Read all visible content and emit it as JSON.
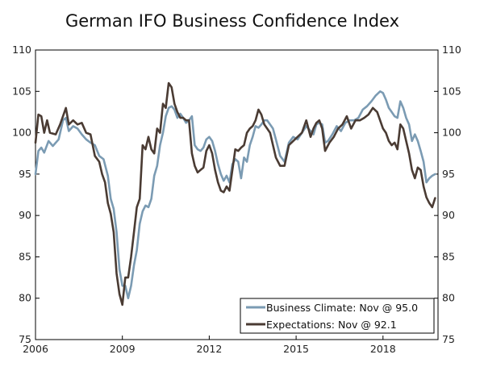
{
  "chart_data": {
    "type": "line",
    "title": "German IFO Business Confidence Index",
    "xlabel": "",
    "ylabel": "",
    "xlim": [
      2006.0,
      2019.9
    ],
    "ylim": [
      75,
      110
    ],
    "y_ticks": [
      75,
      80,
      85,
      90,
      95,
      100,
      105,
      110
    ],
    "y_tick_labels": [
      "75",
      "80",
      "85",
      "90",
      "95",
      "100",
      "105",
      "110"
    ],
    "x_ticks": [
      2006,
      2009,
      2012,
      2015,
      2018
    ],
    "x_tick_labels": [
      "2006",
      "2009",
      "2012",
      "2015",
      "2018"
    ],
    "grid": false,
    "legend_position": "bottom-right",
    "series": [
      {
        "name": "Business Climate",
        "legend_label": "Business Climate: Nov @ 95.0",
        "color": "#7b9bb3",
        "points": [
          [
            2006.0,
            95.0
          ],
          [
            2006.1,
            97.8
          ],
          [
            2006.2,
            98.2
          ],
          [
            2006.3,
            97.6
          ],
          [
            2006.45,
            99.0
          ],
          [
            2006.6,
            98.4
          ],
          [
            2006.8,
            99.2
          ],
          [
            2006.95,
            101.5
          ],
          [
            2007.05,
            101.8
          ],
          [
            2007.15,
            100.2
          ],
          [
            2007.3,
            100.8
          ],
          [
            2007.45,
            100.5
          ],
          [
            2007.6,
            99.8
          ],
          [
            2007.75,
            99.2
          ],
          [
            2007.9,
            98.8
          ],
          [
            2008.05,
            98.5
          ],
          [
            2008.2,
            97.2
          ],
          [
            2008.35,
            96.8
          ],
          [
            2008.5,
            94.8
          ],
          [
            2008.6,
            92.0
          ],
          [
            2008.7,
            90.8
          ],
          [
            2008.8,
            88.0
          ],
          [
            2008.9,
            83.5
          ],
          [
            2009.0,
            81.5
          ],
          [
            2009.1,
            81.5
          ],
          [
            2009.2,
            80.0
          ],
          [
            2009.3,
            81.5
          ],
          [
            2009.4,
            84.0
          ],
          [
            2009.5,
            85.8
          ],
          [
            2009.6,
            89.0
          ],
          [
            2009.7,
            90.5
          ],
          [
            2009.8,
            91.2
          ],
          [
            2009.9,
            91.0
          ],
          [
            2010.0,
            92.0
          ],
          [
            2010.1,
            94.8
          ],
          [
            2010.2,
            96.0
          ],
          [
            2010.3,
            98.5
          ],
          [
            2010.4,
            100.0
          ],
          [
            2010.5,
            102.0
          ],
          [
            2010.6,
            103.0
          ],
          [
            2010.7,
            103.2
          ],
          [
            2010.8,
            102.8
          ],
          [
            2010.9,
            101.8
          ],
          [
            2011.0,
            102.3
          ],
          [
            2011.1,
            101.8
          ],
          [
            2011.2,
            101.2
          ],
          [
            2011.3,
            101.5
          ],
          [
            2011.4,
            102.0
          ],
          [
            2011.5,
            98.5
          ],
          [
            2011.6,
            98.0
          ],
          [
            2011.7,
            97.8
          ],
          [
            2011.8,
            98.2
          ],
          [
            2011.9,
            99.2
          ],
          [
            2012.0,
            99.5
          ],
          [
            2012.1,
            99.0
          ],
          [
            2012.2,
            97.8
          ],
          [
            2012.3,
            96.2
          ],
          [
            2012.4,
            95.0
          ],
          [
            2012.5,
            94.2
          ],
          [
            2012.6,
            94.8
          ],
          [
            2012.7,
            94.0
          ],
          [
            2012.8,
            96.2
          ],
          [
            2012.9,
            96.8
          ],
          [
            2013.0,
            96.5
          ],
          [
            2013.1,
            94.5
          ],
          [
            2013.2,
            97.0
          ],
          [
            2013.3,
            96.5
          ],
          [
            2013.4,
            98.5
          ],
          [
            2013.5,
            99.5
          ],
          [
            2013.6,
            100.8
          ],
          [
            2013.7,
            100.6
          ],
          [
            2013.8,
            101.0
          ],
          [
            2013.9,
            101.5
          ],
          [
            2014.0,
            101.5
          ],
          [
            2014.1,
            101.0
          ],
          [
            2014.2,
            100.5
          ],
          [
            2014.3,
            99.2
          ],
          [
            2014.45,
            97.2
          ],
          [
            2014.6,
            96.5
          ],
          [
            2014.75,
            98.8
          ],
          [
            2014.9,
            99.5
          ],
          [
            2015.05,
            99.2
          ],
          [
            2015.2,
            100.0
          ],
          [
            2015.35,
            100.8
          ],
          [
            2015.5,
            100.2
          ],
          [
            2015.6,
            99.8
          ],
          [
            2015.7,
            101.0
          ],
          [
            2015.8,
            101.2
          ],
          [
            2015.9,
            101.0
          ],
          [
            2016.0,
            98.8
          ],
          [
            2016.1,
            99.0
          ],
          [
            2016.25,
            99.8
          ],
          [
            2016.4,
            100.8
          ],
          [
            2016.55,
            100.2
          ],
          [
            2016.7,
            101.2
          ],
          [
            2016.85,
            101.5
          ],
          [
            2017.0,
            101.5
          ],
          [
            2017.15,
            101.8
          ],
          [
            2017.3,
            102.8
          ],
          [
            2017.45,
            103.2
          ],
          [
            2017.6,
            103.8
          ],
          [
            2017.75,
            104.5
          ],
          [
            2017.9,
            105.0
          ],
          [
            2018.0,
            104.8
          ],
          [
            2018.1,
            104.0
          ],
          [
            2018.2,
            103.0
          ],
          [
            2018.3,
            102.5
          ],
          [
            2018.4,
            102.0
          ],
          [
            2018.5,
            101.8
          ],
          [
            2018.6,
            103.8
          ],
          [
            2018.7,
            103.0
          ],
          [
            2018.8,
            101.8
          ],
          [
            2018.9,
            101.0
          ],
          [
            2019.0,
            99.0
          ],
          [
            2019.1,
            99.8
          ],
          [
            2019.2,
            99.0
          ],
          [
            2019.3,
            97.8
          ],
          [
            2019.4,
            96.5
          ],
          [
            2019.5,
            94.0
          ],
          [
            2019.6,
            94.5
          ],
          [
            2019.7,
            94.8
          ],
          [
            2019.8,
            95.0
          ]
        ]
      },
      {
        "name": "Expectations",
        "legend_label": "Expectations: Nov @ 92.1",
        "color": "#4a3b33",
        "points": [
          [
            2006.0,
            98.8
          ],
          [
            2006.1,
            102.2
          ],
          [
            2006.2,
            102.0
          ],
          [
            2006.3,
            100.0
          ],
          [
            2006.4,
            101.5
          ],
          [
            2006.5,
            100.0
          ],
          [
            2006.7,
            99.8
          ],
          [
            2006.85,
            101.0
          ],
          [
            2006.95,
            102.0
          ],
          [
            2007.05,
            103.0
          ],
          [
            2007.15,
            101.0
          ],
          [
            2007.3,
            101.5
          ],
          [
            2007.45,
            101.0
          ],
          [
            2007.6,
            101.2
          ],
          [
            2007.75,
            100.0
          ],
          [
            2007.9,
            99.8
          ],
          [
            2008.05,
            97.2
          ],
          [
            2008.2,
            96.5
          ],
          [
            2008.3,
            95.0
          ],
          [
            2008.4,
            94.0
          ],
          [
            2008.5,
            91.5
          ],
          [
            2008.6,
            90.2
          ],
          [
            2008.7,
            88.0
          ],
          [
            2008.8,
            83.0
          ],
          [
            2008.9,
            80.5
          ],
          [
            2009.0,
            79.2
          ],
          [
            2009.1,
            82.5
          ],
          [
            2009.2,
            82.5
          ],
          [
            2009.3,
            85.0
          ],
          [
            2009.4,
            88.0
          ],
          [
            2009.5,
            91.0
          ],
          [
            2009.6,
            92.0
          ],
          [
            2009.7,
            98.5
          ],
          [
            2009.8,
            98.0
          ],
          [
            2009.9,
            99.5
          ],
          [
            2010.0,
            98.0
          ],
          [
            2010.1,
            97.5
          ],
          [
            2010.2,
            100.5
          ],
          [
            2010.3,
            100.0
          ],
          [
            2010.4,
            103.5
          ],
          [
            2010.5,
            103.0
          ],
          [
            2010.6,
            106.0
          ],
          [
            2010.7,
            105.5
          ],
          [
            2010.8,
            103.5
          ],
          [
            2010.9,
            102.5
          ],
          [
            2011.0,
            101.8
          ],
          [
            2011.1,
            101.8
          ],
          [
            2011.2,
            101.5
          ],
          [
            2011.3,
            101.5
          ],
          [
            2011.4,
            97.5
          ],
          [
            2011.5,
            96.0
          ],
          [
            2011.6,
            95.2
          ],
          [
            2011.7,
            95.5
          ],
          [
            2011.8,
            95.8
          ],
          [
            2011.9,
            97.8
          ],
          [
            2012.0,
            98.5
          ],
          [
            2012.1,
            97.5
          ],
          [
            2012.2,
            95.5
          ],
          [
            2012.3,
            94.0
          ],
          [
            2012.4,
            93.0
          ],
          [
            2012.5,
            92.8
          ],
          [
            2012.6,
            93.5
          ],
          [
            2012.7,
            93.0
          ],
          [
            2012.8,
            95.5
          ],
          [
            2012.9,
            98.0
          ],
          [
            2013.0,
            97.8
          ],
          [
            2013.1,
            98.2
          ],
          [
            2013.2,
            98.5
          ],
          [
            2013.3,
            100.0
          ],
          [
            2013.4,
            100.5
          ],
          [
            2013.5,
            100.8
          ],
          [
            2013.6,
            101.5
          ],
          [
            2013.7,
            102.8
          ],
          [
            2013.8,
            102.2
          ],
          [
            2013.9,
            101.0
          ],
          [
            2014.0,
            100.5
          ],
          [
            2014.1,
            100.0
          ],
          [
            2014.2,
            98.5
          ],
          [
            2014.3,
            97.0
          ],
          [
            2014.45,
            96.0
          ],
          [
            2014.6,
            96.0
          ],
          [
            2014.75,
            98.5
          ],
          [
            2014.9,
            99.0
          ],
          [
            2015.05,
            99.5
          ],
          [
            2015.2,
            100.0
          ],
          [
            2015.35,
            101.5
          ],
          [
            2015.5,
            99.5
          ],
          [
            2015.6,
            100.5
          ],
          [
            2015.7,
            101.2
          ],
          [
            2015.8,
            101.5
          ],
          [
            2015.9,
            100.5
          ],
          [
            2016.0,
            97.8
          ],
          [
            2016.15,
            98.8
          ],
          [
            2016.3,
            99.5
          ],
          [
            2016.45,
            100.5
          ],
          [
            2016.6,
            101.0
          ],
          [
            2016.75,
            102.0
          ],
          [
            2016.9,
            100.5
          ],
          [
            2017.05,
            101.5
          ],
          [
            2017.2,
            101.5
          ],
          [
            2017.35,
            101.8
          ],
          [
            2017.5,
            102.2
          ],
          [
            2017.65,
            103.0
          ],
          [
            2017.8,
            102.5
          ],
          [
            2017.9,
            101.5
          ],
          [
            2018.0,
            100.5
          ],
          [
            2018.1,
            100.0
          ],
          [
            2018.2,
            99.0
          ],
          [
            2018.3,
            98.5
          ],
          [
            2018.4,
            98.8
          ],
          [
            2018.5,
            98.0
          ],
          [
            2018.6,
            101.0
          ],
          [
            2018.7,
            100.5
          ],
          [
            2018.8,
            99.0
          ],
          [
            2018.9,
            97.5
          ],
          [
            2019.0,
            95.5
          ],
          [
            2019.1,
            94.5
          ],
          [
            2019.2,
            95.8
          ],
          [
            2019.3,
            95.5
          ],
          [
            2019.4,
            93.5
          ],
          [
            2019.5,
            92.2
          ],
          [
            2019.6,
            91.5
          ],
          [
            2019.7,
            91.0
          ],
          [
            2019.8,
            92.1
          ]
        ]
      }
    ]
  }
}
